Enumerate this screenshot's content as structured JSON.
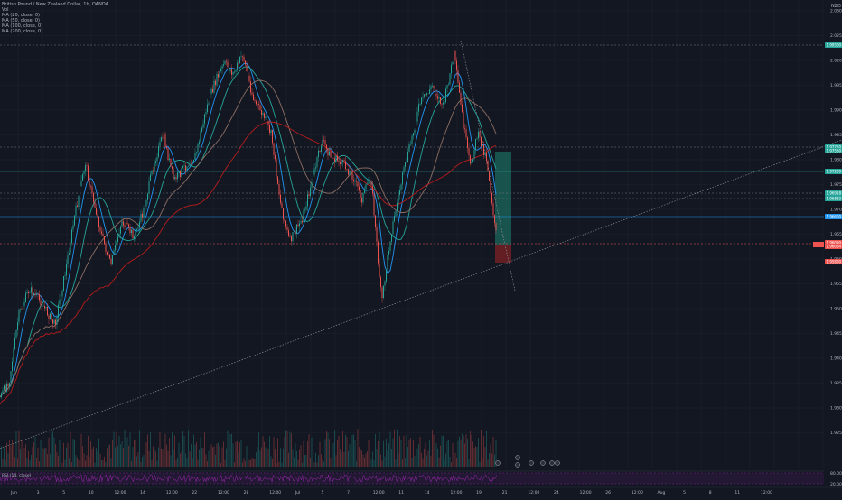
{
  "header": {
    "symbol_line": "British Pound / New Zealand Dollar, 1h, OANDA",
    "vol_line": "Vol",
    "ma_lines": [
      "MA (20, close, 0)",
      "MA (50, close, 0)",
      "MA (100, close, 0)",
      "MA (200, close, 0)"
    ],
    "currency": "NZD"
  },
  "colors": {
    "background": "#131722",
    "grid": "#1e222d",
    "candle_up": "#26a69a",
    "candle_down": "#ef5350",
    "ma20": "#2196f3",
    "ma50": "#26a69a",
    "ma100": "#8d6e63",
    "ma200": "#b71c1c",
    "long_target_zone": "#1b5e55",
    "long_stop_zone": "#6b1f24",
    "rsi": "#9c27b0",
    "trendline": "#9598a1"
  },
  "price_axis": {
    "ticks": [
      "2.03000",
      "2.02500",
      "2.02000",
      "1.99500",
      "1.99000",
      "1.98500",
      "1.98000",
      "1.97500",
      "1.97000",
      "1.96500",
      "1.96000",
      "1.95500",
      "1.95000",
      "1.94500",
      "1.94000",
      "1.93500",
      "1.93000",
      "1.92500"
    ],
    "tags": [
      {
        "label": "1.99500",
        "color": "#26a69a"
      },
      {
        "label": "1.97750",
        "color": "#26a69a"
      },
      {
        "label": "1.97560",
        "color": "#26a69a"
      },
      {
        "label": "1.97200",
        "color": "#26a69a"
      },
      {
        "label": "1.96918",
        "color": "#26a69a"
      },
      {
        "label": "1.96883",
        "color": "#26a69a"
      },
      {
        "label": "1.96600",
        "color": "#2196f3"
      },
      {
        "label": "1.96090",
        "color": "#ef5350"
      },
      {
        "label": "1.96064",
        "color": "#ef5350"
      },
      {
        "label": "1.95800",
        "color": "#ef5350"
      }
    ]
  },
  "time_axis": {
    "ticks": [
      "Jun",
      "3",
      "5",
      "10",
      "12:00",
      "14",
      "12:00",
      "22",
      "12:00",
      "28",
      "12:00",
      "Jul",
      "5",
      "7",
      "12:00",
      "11",
      "14",
      "12:00",
      "19",
      "21",
      "12:00",
      "24",
      "12:00",
      "26",
      "12:00",
      "Aug",
      "5",
      "8",
      "11",
      "12:00"
    ]
  },
  "rsi": {
    "label": "RSI (14, close)",
    "levels": [
      "80.00",
      "20.00"
    ]
  }
}
